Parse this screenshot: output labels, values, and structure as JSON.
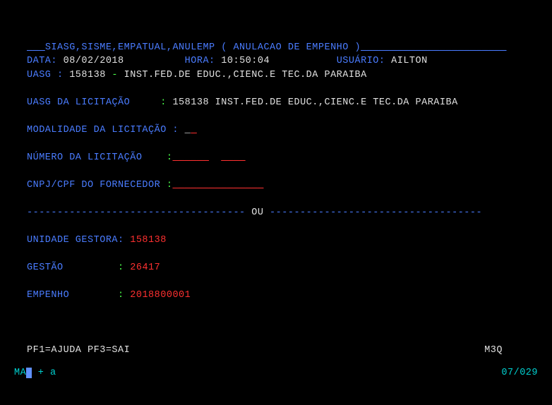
{
  "header": {
    "breadcrumb_prefix": "__ ",
    "breadcrumb": "SIASG,SISME,EMPATUAL,ANULEMP ( ANULACAO DE EMPENHO )",
    "breadcrumb_suffix": "________________________"
  },
  "line1": {
    "data_label": "DATA:",
    "data_value": " 08/02/2018          ",
    "hora_label": "HORA:",
    "hora_value": " 10:50:04           ",
    "usuario_label": "USUÁRIO:",
    "usuario_value": " AILTON"
  },
  "line2": {
    "uasg_label": "UASG :",
    "uasg_num": " 158138 ",
    "dash": "-",
    "uasg_name": " INST.FED.DE EDUC.,CIENC.E TEC.DA PARAIBA"
  },
  "licitacao": {
    "label": "UASG DA LICITAÇÃO     ",
    "colon": ":",
    "value": " 158138 INST.FED.DE EDUC.,CIENC.E TEC.DA PARAIBA"
  },
  "modalidade": {
    "label": "MODALIDADE DA LICITAÇÃO :",
    "cursor": " _",
    "field": " "
  },
  "numero": {
    "label": "NÚMERO DA LICITAÇÃO    ",
    "colon": ":",
    "field1": " _____",
    "gap": "  ",
    "field2": "____"
  },
  "cnpj": {
    "label": "CNPJ/CPF DO FORNECEDOR ",
    "colon": ":",
    "field": " ______________"
  },
  "divider": {
    "left": "------------------------------------ ",
    "ou": "OU",
    "right": " -----------------------------------"
  },
  "unidade": {
    "label": "UNIDADE GESTORA:",
    "value": " 158138"
  },
  "gestao": {
    "label": "GESTÃO         ",
    "colon": ":",
    "value": " 26417"
  },
  "empenho": {
    "label": "EMPENHO        ",
    "colon": ":",
    "value": " 2018800001"
  },
  "footer": {
    "help": "PF1=AJUDA PF3=SAI",
    "code": "M3Q"
  },
  "status": {
    "left_prefix": "MA",
    "left_plus": " + ",
    "left_a": " a",
    "right": "07/029"
  }
}
